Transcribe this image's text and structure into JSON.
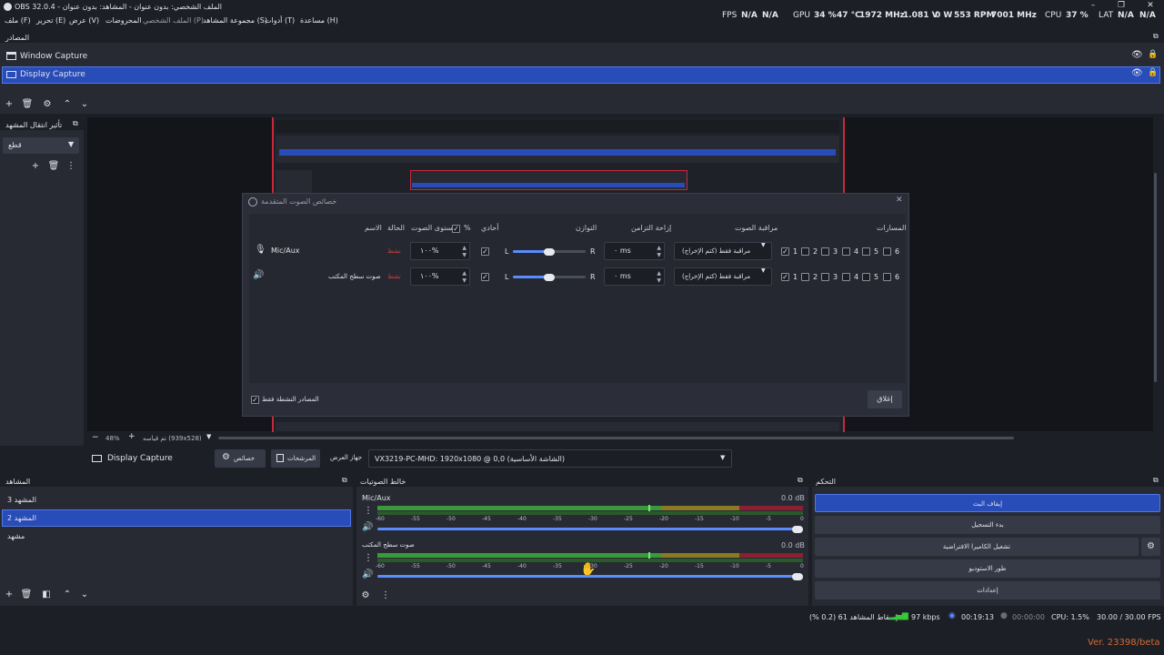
{
  "window": {
    "title": "OBS 32.0.4 - الملف الشخصي: بدون عنوان - المشاهد: بدون عنوان",
    "controls": {
      "minimize": "–",
      "maximize": "❐",
      "close": "✕"
    }
  },
  "menu": [
    "ملف (F)",
    "تحرير (E)",
    "عرض (V)",
    "المحروضات",
    "الملف الشخصي (P)",
    "مجموعة المشاهد (S)",
    "أدوات (T)",
    "مساعدة (H)"
  ],
  "stats": {
    "fps_label": "FPS",
    "fps_value1": "N/A",
    "fps_value2": "N/A",
    "gpu_label": "GPU",
    "gpu_usage": "34 %",
    "gpu_temp": "47 °C",
    "gpu_clock": "1972 MHz",
    "gpu_voltage": "1.081 V",
    "gpu_power": "0 W",
    "gpu_fan": "553 RPM",
    "gpu_mem_clock": "7001 MHz",
    "cpu_label": "CPU",
    "cpu_usage": "37 %",
    "lat_label": "LAT",
    "lat_value1": "N/A",
    "lat_value2": "N/A"
  },
  "sources_dock": {
    "title": "المصادر",
    "items": [
      {
        "label": "Window Capture",
        "selected": false
      },
      {
        "label": "Display Capture",
        "selected": true
      }
    ]
  },
  "transitions_dock": {
    "title": "تأثير انتقال المشهد",
    "selected": "قطع"
  },
  "preview": {
    "zoom": "48%",
    "size_label": "تم قياسه (939x528)"
  },
  "source_toolbar": {
    "source_name": "Display Capture",
    "properties_label": "خصائص",
    "filters_label": "المرشحات",
    "device_label": "جهاز العرض",
    "device_value": "VX3219-PC-MHD: 1920x1080 @ 0,0 (الشاشة الأساسية)"
  },
  "dialog": {
    "title": "خصائص الصوت المتقدمة",
    "close_icon": "✕",
    "headers": {
      "name": "الاسم",
      "status": "الحالة",
      "volume": "مستوى الصوت",
      "percent": "%",
      "mono": "أحادي",
      "balance": "التوازن",
      "sync_offset": "إزاحة التزامن",
      "monitoring": "مراقبة الصوت",
      "tracks": "المسارات"
    },
    "rows": [
      {
        "name": "Mic/Aux",
        "status": "نشط",
        "volume": "١٠٠%",
        "balance_left": "L",
        "balance_right": "R",
        "offset": "٠ ms",
        "monitoring": "مراقبة فقط (كتم الإخراج)",
        "tracks": [
          "1",
          "2",
          "3",
          "4",
          "5",
          "6"
        ],
        "icon": "mic-icon"
      },
      {
        "name": "صوت سطح المكتب",
        "status": "نشط",
        "volume": "١٠٠%",
        "balance_left": "L",
        "balance_right": "R",
        "offset": "٠ ms",
        "monitoring": "مراقبة فقط (كتم الإخراج)",
        "tracks": [
          "1",
          "2",
          "3",
          "4",
          "5",
          "6"
        ],
        "icon": "speaker-icon"
      }
    ],
    "active_sources_label": "المصادر النشطة فقط",
    "close_button": "إغلاق"
  },
  "scenes_dock": {
    "title": "المشاهد",
    "items": [
      {
        "label": "المشهد 3",
        "selected": false
      },
      {
        "label": "المشهد 2",
        "selected": true
      },
      {
        "label": "مشهد",
        "selected": false
      }
    ]
  },
  "mixer_dock": {
    "title": "خالط الصوتيات",
    "channels": [
      {
        "name": "Mic/Aux",
        "db": "0.0 dB"
      },
      {
        "name": "صوت سطح المكتب",
        "db": "0.0 dB"
      }
    ],
    "ticks": [
      "-60",
      "-55",
      "-50",
      "-45",
      "-40",
      "-35",
      "-30",
      "-25",
      "-20",
      "-15",
      "-10",
      "-5",
      "0"
    ]
  },
  "controls_dock": {
    "title": "التحكم",
    "buttons": [
      "إيقاف البث",
      "بدء التسجيل",
      "تشغيل الكاميرا الافتراضية",
      "طور الاستوديو",
      "إعدادات"
    ]
  },
  "statusbar": {
    "dropped": "إسقاط المشاهد 61 (0.2 %)",
    "bitrate": "97 kbps",
    "stream_time": "00:19:13",
    "rec_time": "00:00:00",
    "cpu": "CPU: 1.5%",
    "fps": "30.00 / 30.00 FPS",
    "version": "Ver. 23398/beta"
  },
  "colors": {
    "accent": "#284cb8",
    "active_red": "#d43a3a",
    "meter_green": "#3a9a3a",
    "meter_yellow": "#b59a2a",
    "meter_red": "#a82a2a"
  }
}
